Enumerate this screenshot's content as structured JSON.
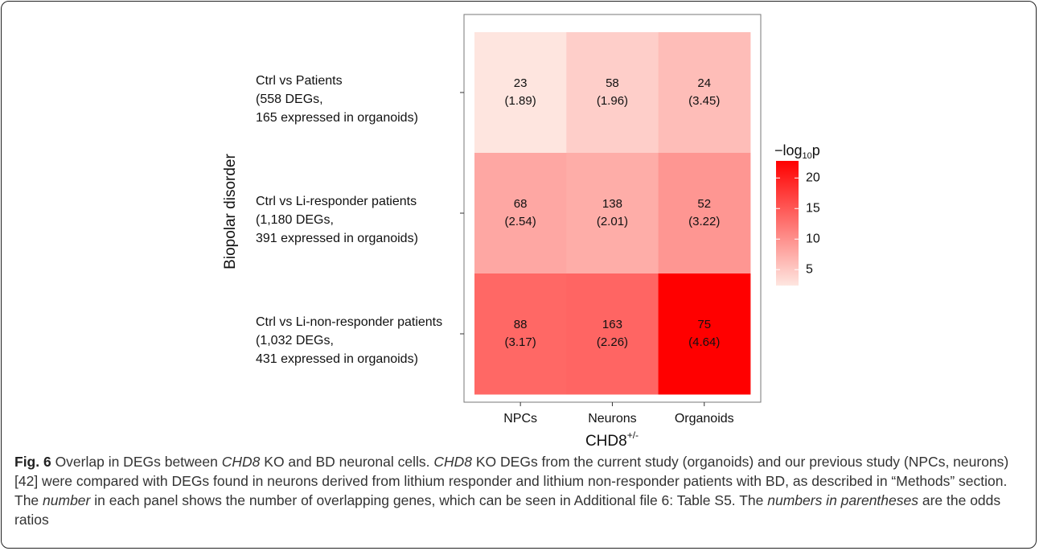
{
  "chart_data": {
    "type": "heatmap",
    "x_categories": [
      "NPCs",
      "Neurons",
      "Organoids"
    ],
    "y_categories": [
      [
        "Ctrl vs Patients",
        "(558 DEGs,",
        "165 expressed in organoids)"
      ],
      [
        "Ctrl vs Li-responder patients",
        "(1,180 DEGs,",
        "391 expressed in organoids)"
      ],
      [
        "Ctrl vs Li-non-responder patients",
        "(1,032 DEGs,",
        "431 expressed in organoids)"
      ]
    ],
    "ylabel": "Biopolar disorder",
    "xlabel": "CHD8",
    "xlabel_superscript": "+/-",
    "values": [
      [
        2.5,
        4.5,
        6
      ],
      [
        8,
        7.5,
        9.5
      ],
      [
        13.6,
        13.8,
        22.8
      ]
    ],
    "counts": [
      [
        23,
        58,
        24
      ],
      [
        68,
        138,
        52
      ],
      [
        88,
        163,
        75
      ]
    ],
    "odds_ratios": [
      [
        1.89,
        1.96,
        3.45
      ],
      [
        2.54,
        2.01,
        3.22
      ],
      [
        3.17,
        2.26,
        4.64
      ]
    ],
    "odds_ratio_labels": [
      [
        "(1.89)",
        "(1.96)",
        "(3.45)"
      ],
      [
        "(2.54)",
        "(2.01)",
        "(3.22)"
      ],
      [
        "(3.17)",
        "(2.26)",
        "(4.64)"
      ]
    ],
    "colorbar_label": [
      "−log",
      "10",
      "p"
    ],
    "clim": [
      2.4,
      22.8
    ],
    "cticks": [
      5,
      10,
      15,
      20
    ],
    "colors": [
      "#fee6e0",
      "#ff0000"
    ]
  },
  "caption": [
    "Fig. 6",
    " Overlap in DEGs between ",
    "CHD8",
    " KO and BD neuronal cells. ",
    "CHD8",
    " KO DEGs from the current study (organoids) and our previous study (NPCs, neurons) [42] were compared with DEGs found in neurons derived from lithium responder and lithium non-responder patients with BD, as described in “Methods” section. The ",
    "number",
    " in each panel shows the number of overlapping genes, which can be seen in Additional file 6: Table S5. The ",
    "numbers in parentheses",
    " are the odds ratios"
  ]
}
